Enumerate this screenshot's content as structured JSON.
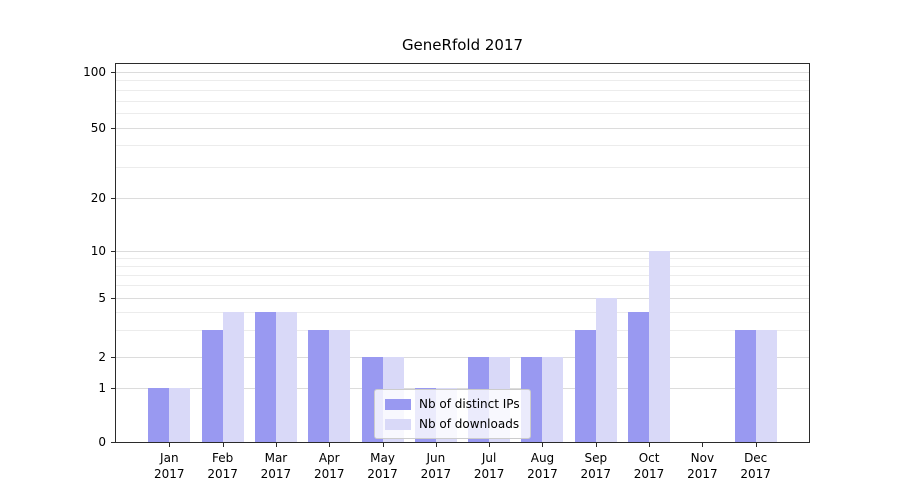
{
  "title": "GeneRfold 2017",
  "colors": {
    "distinct_ips": "#9999f1",
    "downloads": "#d9d9f8",
    "grid_major": "#dcdcdc",
    "grid_minor": "#ececec",
    "axis": "#2b2b2b"
  },
  "legend": {
    "items": [
      {
        "label": "Nb of distinct IPs",
        "color_key": "distinct_ips"
      },
      {
        "label": "Nb of downloads",
        "color_key": "downloads"
      }
    ]
  },
  "chart_data": {
    "type": "bar",
    "title": "GeneRfold 2017",
    "categories": [
      "Jan",
      "Feb",
      "Mar",
      "Apr",
      "May",
      "Jun",
      "Jul",
      "Aug",
      "Sep",
      "Oct",
      "Nov",
      "Dec"
    ],
    "category_year": "2017",
    "series": [
      {
        "name": "Nb of distinct IPs",
        "color": "#9999f1",
        "values": [
          1,
          3,
          4,
          3,
          2,
          1,
          2,
          2,
          3,
          4,
          0,
          3
        ]
      },
      {
        "name": "Nb of downloads",
        "color": "#d9d9f8",
        "values": [
          1,
          4,
          4,
          3,
          2,
          1,
          2,
          2,
          5,
          10,
          0,
          3
        ]
      }
    ],
    "yscale": "symlog",
    "ylim": [
      0,
      110
    ],
    "yticks": [
      0,
      1,
      2,
      5,
      10,
      20,
      50,
      100
    ],
    "yticks_minor": [
      3,
      4,
      6,
      7,
      8,
      9,
      30,
      40,
      60,
      70,
      80,
      90
    ],
    "grid": true,
    "legend_position": "lower center"
  }
}
